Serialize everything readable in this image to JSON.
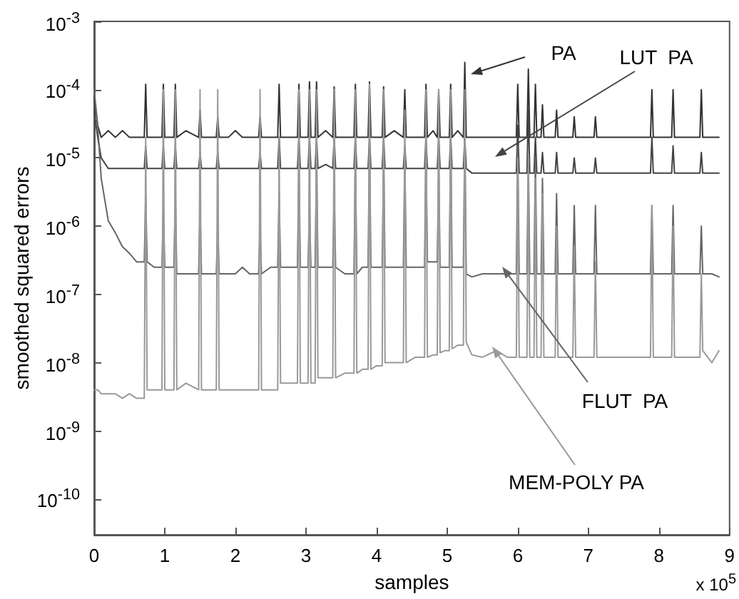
{
  "chart_data": {
    "type": "line",
    "xlabel": "samples",
    "ylabel": "smoothed squared errors",
    "log": "y",
    "annotations": [
      "x 10$^{5}$"
    ],
    "xlim": [
      0,
      9
    ],
    "xticks": [
      0,
      1,
      2,
      3,
      4,
      5,
      6,
      7,
      8,
      9
    ],
    "ylim": [
      3e-11,
      0.001
    ],
    "yticks": [
      {
        "value": 1e-10,
        "label": "10$^{-10}$"
      },
      {
        "value": 1e-09,
        "label": "10$^{-9}$"
      },
      {
        "value": 1e-08,
        "label": "10$^{-8}$"
      },
      {
        "value": 1e-07,
        "label": "10$^{-7}$"
      },
      {
        "value": 1e-06,
        "label": "10$^{-6}$"
      },
      {
        "value": 1e-05,
        "label": "10$^{-5}$"
      },
      {
        "value": 0.0001,
        "label": "10$^{-4}$"
      },
      {
        "value": 0.001,
        "label": "10$^{-3}$"
      }
    ],
    "x": [
      0,
      0.05,
      0.1,
      0.2,
      0.3,
      0.4,
      0.5,
      0.6,
      0.71,
      0.73,
      0.75,
      0.85,
      0.96,
      0.98,
      1.0,
      1.13,
      1.15,
      1.17,
      1.3,
      1.48,
      1.5,
      1.52,
      1.6,
      1.73,
      1.75,
      1.77,
      1.9,
      2.0,
      2.1,
      2.2,
      2.33,
      2.35,
      2.37,
      2.5,
      2.6,
      2.62,
      2.64,
      2.75,
      2.88,
      2.9,
      2.92,
      3.03,
      3.05,
      3.07,
      3.13,
      3.15,
      3.17,
      3.28,
      3.38,
      3.4,
      3.42,
      3.55,
      3.68,
      3.7,
      3.72,
      3.8,
      3.88,
      3.9,
      3.92,
      4.0,
      4.08,
      4.1,
      4.12,
      4.25,
      4.38,
      4.4,
      4.42,
      4.55,
      4.68,
      4.7,
      4.72,
      4.8,
      4.86,
      4.88,
      4.9,
      4.97,
      5.03,
      5.05,
      5.07,
      5.15,
      5.23,
      5.25,
      5.27,
      5.35,
      5.5,
      5.7,
      5.85,
      5.98,
      6.0,
      6.02,
      6.13,
      6.15,
      6.17,
      6.23,
      6.25,
      6.27,
      6.33,
      6.35,
      6.37,
      6.45,
      6.53,
      6.55,
      6.57,
      6.68,
      6.78,
      6.8,
      6.82,
      6.95,
      7.08,
      7.1,
      7.12,
      7.3,
      7.5,
      7.7,
      7.88,
      7.9,
      7.92,
      8.05,
      8.18,
      8.2,
      8.22,
      8.4,
      8.58,
      8.6,
      8.62,
      8.75,
      8.85
    ],
    "series": [
      {
        "name": "PA",
        "color": "#333333",
        "values": [
          8e-05,
          3e-05,
          2e-05,
          2.5e-05,
          2e-05,
          2.5e-05,
          2e-05,
          2e-05,
          2e-05,
          0.00012,
          2e-05,
          2e-05,
          2e-05,
          0.00012,
          2e-05,
          2e-05,
          0.00012,
          2e-05,
          2.5e-05,
          2e-05,
          5e-05,
          2e-05,
          2e-05,
          2e-05,
          4e-05,
          2e-05,
          2e-05,
          2.5e-05,
          2e-05,
          2e-05,
          2e-05,
          4e-05,
          2e-05,
          2e-05,
          2e-05,
          0.00012,
          2e-05,
          2e-05,
          2e-05,
          0.00012,
          2e-05,
          2e-05,
          0.00013,
          2e-05,
          2e-05,
          0.00013,
          2e-05,
          2.5e-05,
          2e-05,
          0.00011,
          2e-05,
          2e-05,
          2e-05,
          0.00012,
          2e-05,
          2e-05,
          2e-05,
          0.00013,
          2e-05,
          2e-05,
          2e-05,
          0.00011,
          2e-05,
          2.5e-05,
          2e-05,
          0.0001,
          2e-05,
          2e-05,
          2e-05,
          0.00012,
          2e-05,
          2.5e-05,
          2e-05,
          0.0001,
          2e-05,
          2e-05,
          2e-05,
          0.00012,
          2e-05,
          2.5e-05,
          2e-05,
          0.00025,
          2e-05,
          2e-05,
          2e-05,
          2e-05,
          2e-05,
          2e-05,
          0.00012,
          2e-05,
          2e-05,
          0.0002,
          2e-05,
          2e-05,
          0.00012,
          2e-05,
          2e-05,
          6e-05,
          2e-05,
          2e-05,
          2e-05,
          5e-05,
          2e-05,
          2e-05,
          2e-05,
          4e-05,
          2e-05,
          2e-05,
          2e-05,
          4e-05,
          2e-05,
          2e-05,
          2e-05,
          2e-05,
          2e-05,
          0.0001,
          2e-05,
          2e-05,
          2e-05,
          0.0001,
          2e-05,
          2e-05,
          2e-05,
          0.0001,
          2e-05,
          2e-05,
          2e-05
        ]
      },
      {
        "name": "LUT  PA",
        "color": "#444444",
        "values": [
          5e-05,
          2e-05,
          1e-05,
          7e-06,
          7e-06,
          7e-06,
          7e-06,
          7e-06,
          7e-06,
          1.5e-05,
          7e-06,
          7e-06,
          7e-06,
          1.5e-05,
          7e-06,
          7e-06,
          1.5e-05,
          7e-06,
          7e-06,
          7e-06,
          1.2e-05,
          7e-06,
          7e-06,
          7e-06,
          1.2e-05,
          7e-06,
          7e-06,
          7e-06,
          7e-06,
          7e-06,
          7e-06,
          1.2e-05,
          7e-06,
          7e-06,
          7e-06,
          2e-05,
          7e-06,
          7e-06,
          7e-06,
          2e-05,
          7e-06,
          7e-06,
          2e-05,
          7e-06,
          7e-06,
          2e-05,
          7e-06,
          8e-06,
          7e-06,
          2e-05,
          7e-06,
          7e-06,
          7e-06,
          2e-05,
          7e-06,
          7e-06,
          7e-06,
          2e-05,
          7e-06,
          7e-06,
          7e-06,
          2e-05,
          7e-06,
          7e-06,
          7e-06,
          1.5e-05,
          7e-06,
          7e-06,
          7e-06,
          2e-05,
          7e-06,
          7e-06,
          7e-06,
          2e-05,
          7e-06,
          7e-06,
          7e-06,
          2e-05,
          7e-06,
          7e-06,
          7e-06,
          2e-05,
          7e-06,
          6e-06,
          6e-06,
          6e-06,
          6e-06,
          6e-06,
          3e-05,
          6e-06,
          6e-06,
          5e-05,
          6e-06,
          6e-06,
          2e-05,
          6e-06,
          6e-06,
          1.2e-05,
          6e-06,
          6e-06,
          6e-06,
          1.2e-05,
          6e-06,
          6e-06,
          6e-06,
          1e-05,
          6e-06,
          6e-06,
          6e-06,
          1e-05,
          6e-06,
          6e-06,
          6e-06,
          6e-06,
          6e-06,
          2e-05,
          6e-06,
          6e-06,
          6e-06,
          1.5e-05,
          6e-06,
          6e-06,
          6e-06,
          1.2e-05,
          6e-06,
          6e-06,
          6e-06
        ]
      },
      {
        "name": "FLUT  PA",
        "color": "#666666",
        "values": [
          0.0001,
          3e-05,
          5e-06,
          1.2e-06,
          8e-07,
          5e-07,
          4e-07,
          3e-07,
          3e-07,
          3e-06,
          3e-07,
          2.5e-07,
          2.5e-07,
          2e-06,
          2.5e-07,
          2.5e-07,
          3e-06,
          2e-07,
          2e-07,
          2e-07,
          2e-06,
          2e-07,
          2e-07,
          2e-07,
          1e-06,
          2e-07,
          2e-07,
          2e-07,
          2.5e-07,
          2e-07,
          2e-07,
          1e-06,
          2e-07,
          2.5e-07,
          2.5e-07,
          3e-06,
          2.5e-07,
          2.5e-07,
          2.5e-07,
          1e-05,
          2.5e-07,
          2.5e-07,
          2e-06,
          2.5e-07,
          2.5e-07,
          1e-05,
          2.5e-07,
          2.5e-07,
          2.5e-07,
          3e-06,
          2.5e-07,
          2e-07,
          2e-07,
          1e-05,
          2e-07,
          2.5e-07,
          2.5e-07,
          2e-05,
          2.5e-07,
          2.5e-07,
          2.5e-07,
          1e-05,
          2.5e-07,
          2.5e-07,
          2.5e-07,
          1e-05,
          2.5e-07,
          2.5e-07,
          2.5e-07,
          1.5e-05,
          3e-07,
          3e-07,
          3e-07,
          8e-06,
          2.5e-07,
          2.5e-07,
          2.5e-07,
          2e-05,
          2.5e-07,
          2.5e-07,
          2.5e-07,
          2e-05,
          2e-07,
          1.8e-07,
          2e-07,
          2e-07,
          2e-07,
          2e-07,
          1.5e-05,
          2e-07,
          2e-07,
          1e-05,
          2e-07,
          2e-07,
          1e-05,
          2e-07,
          2e-07,
          5e-06,
          2e-07,
          2e-07,
          2e-07,
          3e-06,
          2e-07,
          2e-07,
          2e-07,
          2e-06,
          2e-07,
          2e-07,
          2e-07,
          2e-06,
          2e-07,
          2e-07,
          2e-07,
          2e-07,
          2e-07,
          2e-06,
          2e-07,
          2e-07,
          2e-07,
          2e-06,
          2e-07,
          2e-07,
          2e-07,
          1e-06,
          2e-07,
          2e-07,
          1.8e-07
        ]
      },
      {
        "name": "MEM-POLY PA",
        "color": "#999999",
        "values": [
          4e-09,
          4e-09,
          3.5e-09,
          3.5e-09,
          3.5e-09,
          3e-09,
          3.5e-09,
          3e-09,
          3e-09,
          2e-05,
          4e-09,
          4e-09,
          4e-09,
          0.0001,
          4e-09,
          4e-09,
          0.0001,
          4e-09,
          5e-09,
          4e-09,
          0.0001,
          4e-09,
          4e-09,
          4e-09,
          0.0001,
          4e-09,
          4e-09,
          4e-09,
          4e-09,
          4e-09,
          4e-09,
          0.0001,
          4e-09,
          4e-09,
          4e-09,
          2e-05,
          5e-09,
          5e-09,
          5e-09,
          0.0001,
          5e-09,
          5e-09,
          0.0001,
          5e-09,
          5e-09,
          0.0001,
          6e-09,
          6e-09,
          6e-09,
          0.0001,
          6e-09,
          7e-09,
          7e-09,
          0.0001,
          7e-09,
          8e-09,
          8e-09,
          0.00012,
          8e-09,
          9e-09,
          9e-09,
          0.0001,
          1e-08,
          1e-08,
          1e-08,
          5e-05,
          1e-08,
          1.2e-08,
          1.2e-08,
          0.0001,
          1.2e-08,
          1.3e-08,
          1.3e-08,
          0.0001,
          1.4e-08,
          1.5e-08,
          1.5e-08,
          0.0001,
          1.6e-08,
          1.8e-08,
          1.8e-08,
          0.0001,
          2e-08,
          1.3e-08,
          1.2e-08,
          1.5e-08,
          1.2e-08,
          1.2e-08,
          1e-05,
          1.2e-08,
          1.2e-08,
          1e-05,
          1.2e-08,
          1.2e-08,
          5e-06,
          1.2e-08,
          1.2e-08,
          3e-06,
          1.2e-08,
          1.2e-08,
          1.2e-08,
          1e-06,
          1.2e-08,
          1.2e-08,
          1.2e-08,
          5e-07,
          1.2e-08,
          1.2e-08,
          1.2e-08,
          3e-07,
          1.2e-08,
          1.2e-08,
          1.2e-08,
          1.2e-08,
          1.2e-08,
          2e-06,
          1.2e-08,
          1.2e-08,
          1.2e-08,
          1e-06,
          1.2e-08,
          1.2e-08,
          1.2e-08,
          2e-07,
          1.5e-08,
          1e-08,
          1.5e-08
        ]
      }
    ]
  }
}
